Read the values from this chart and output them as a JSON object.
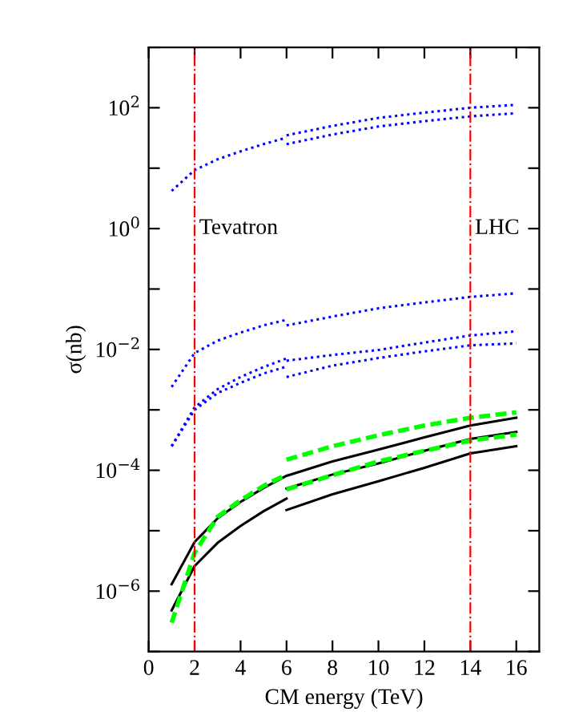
{
  "chart_data": {
    "type": "line",
    "xlabel": "CM energy (TeV)",
    "ylabel": "σ(nb)",
    "log": "y",
    "xlim": [
      0,
      17
    ],
    "xticks": [
      0,
      2,
      4,
      6,
      8,
      10,
      12,
      14,
      16
    ],
    "ylim": [
      1e-07,
      1000
    ],
    "yticks": [
      {
        "value": 1e-07,
        "label": null
      },
      {
        "value": 1e-06,
        "label": "10$^{−6}$"
      },
      {
        "value": 1e-05,
        "label": null
      },
      {
        "value": 0.0001,
        "label": "10$^{−4}$"
      },
      {
        "value": 0.001,
        "label": null
      },
      {
        "value": 0.01,
        "label": "10$^{−2}$"
      },
      {
        "value": 0.1,
        "label": null
      },
      {
        "value": 1,
        "label": "10$^{0}$"
      },
      {
        "value": 10,
        "label": null
      },
      {
        "value": 100,
        "label": "10$^{2}$"
      },
      {
        "value": 1000,
        "label": null
      }
    ],
    "grid": false,
    "legend": false,
    "marker": "none",
    "series": [
      {
        "color": "#0000ff",
        "line_style": "dotted",
        "x": [
          1,
          2,
          3,
          4,
          5,
          6,
          6,
          8,
          10,
          12,
          14,
          16
        ],
        "values": [
          4.2,
          9.3,
          14,
          19,
          25,
          32,
          35,
          50,
          68,
          83,
          100,
          112
        ]
      },
      {
        "color": "#0000ff",
        "line_style": "dotted",
        "x": [
          6,
          8,
          10,
          12,
          14,
          16
        ],
        "values": [
          25,
          36,
          49,
          60,
          72,
          81
        ]
      },
      {
        "color": "#0000ff",
        "line_style": "dotted",
        "x": [
          1,
          2,
          3,
          4,
          5,
          6,
          6,
          8,
          10,
          12,
          14,
          16
        ],
        "values": [
          0.0024,
          0.0087,
          0.014,
          0.019,
          0.025,
          0.031,
          0.025,
          0.035,
          0.048,
          0.06,
          0.074,
          0.085
        ]
      },
      {
        "color": "#0000ff",
        "line_style": "dotted",
        "x": [
          1,
          2,
          3,
          4,
          5,
          6,
          6,
          8,
          10,
          12,
          14,
          16
        ],
        "values": [
          0.00025,
          0.0011,
          0.0022,
          0.0035,
          0.0051,
          0.0071,
          0.0065,
          0.0081,
          0.0098,
          0.013,
          0.017,
          0.02
        ]
      },
      {
        "color": "#0000ff",
        "line_style": "dotted",
        "x": [
          1,
          2,
          3,
          4,
          5,
          6,
          6,
          8,
          10,
          12,
          14,
          16
        ],
        "values": [
          0.00025,
          0.001,
          0.0019,
          0.0028,
          0.004,
          0.0052,
          0.0035,
          0.0054,
          0.0072,
          0.0093,
          0.0117,
          0.0126
        ]
      },
      {
        "color": "#000000",
        "line_style": "solid",
        "x": [
          1,
          2,
          3,
          4,
          5,
          6,
          6,
          8,
          10,
          12,
          14,
          16
        ],
        "values": [
          1.3e-06,
          6.5e-06,
          1.6e-05,
          3e-05,
          5.1e-05,
          8.1e-05,
          8.1e-05,
          0.00014,
          0.00022,
          0.00035,
          0.00055,
          0.00074
        ]
      },
      {
        "color": "#000000",
        "line_style": "solid",
        "x": [
          1,
          2,
          3,
          4,
          5,
          6,
          6,
          8,
          10,
          12,
          14,
          16
        ],
        "values": [
          4.8e-07,
          2.6e-06,
          6.3e-06,
          1.2e-05,
          2.1e-05,
          3.4e-05,
          2.2e-05,
          4e-05,
          6.6e-05,
          0.00011,
          0.00019,
          0.00025
        ]
      },
      {
        "color": "#000000",
        "line_style": "solid",
        "x": [
          6,
          8,
          10,
          12,
          14,
          16
        ],
        "values": [
          5e-05,
          8.5e-05,
          0.00013,
          0.00021,
          0.00033,
          0.00043
        ]
      },
      {
        "color": "#00ff00",
        "line_style": "dashed",
        "x": [
          1,
          2,
          3,
          4,
          5,
          6,
          6,
          8,
          10,
          12,
          14,
          16
        ],
        "values": [
          3e-07,
          4.3e-06,
          1.7e-05,
          3.2e-05,
          5.5e-05,
          8.5e-05,
          0.00015,
          0.00025,
          0.00038,
          0.00055,
          0.00074,
          0.00091
        ]
      },
      {
        "color": "#00ff00",
        "line_style": "dashed",
        "x": [
          6,
          8,
          10,
          12,
          14,
          16
        ],
        "values": [
          4.8e-05,
          8.3e-05,
          0.00014,
          0.00021,
          0.00031,
          0.00039
        ]
      }
    ],
    "ref_lines": [
      {
        "axis": "x",
        "value": 2,
        "label": "Tevatron",
        "color": "#ff0000",
        "line_style": "dashdot"
      },
      {
        "axis": "x",
        "value": 14,
        "label": "LHC",
        "color": "#ff0000",
        "line_style": "dashdot"
      }
    ]
  }
}
